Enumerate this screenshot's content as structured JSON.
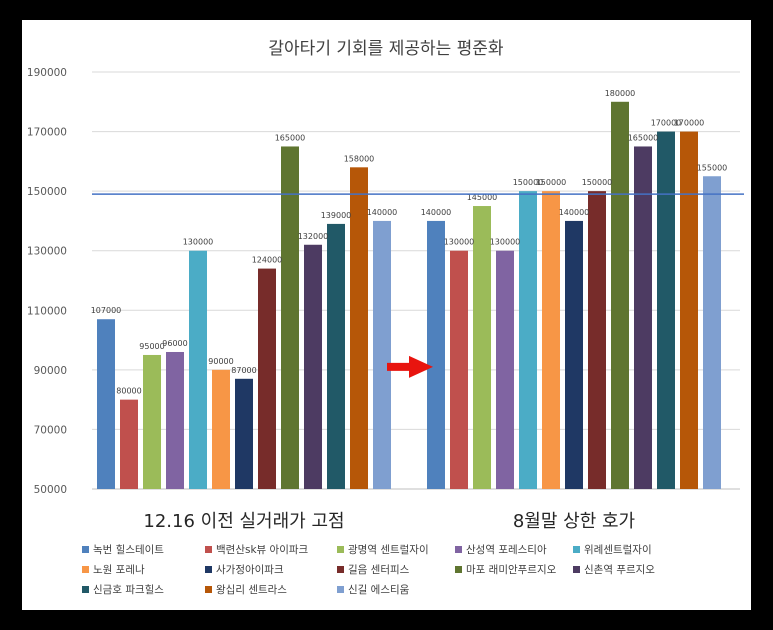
{
  "chart_data": {
    "type": "bar",
    "title": "갈아타기 기회를 제공하는 평준화",
    "ylim": [
      50000,
      190000
    ],
    "yticks": [
      50000,
      70000,
      90000,
      110000,
      130000,
      150000,
      170000,
      190000
    ],
    "grid": true,
    "legend_position": "bottom",
    "groups": [
      {
        "label": "12.16 이전 실거래가 고점",
        "series": [
          {
            "name": "녹번 힐스테이트",
            "value": 107000,
            "color": "#4F81BD"
          },
          {
            "name": "백련산sk뷰 아이파크",
            "value": 80000,
            "color": "#C0504D"
          },
          {
            "name": "광명역 센트럴자이",
            "value": 95000,
            "color": "#9BBB59"
          },
          {
            "name": "산성역 포레스티아",
            "value": 96000,
            "color": "#8064A2"
          },
          {
            "name": "위례센트럴자이",
            "value": 130000,
            "color": "#4BACC6"
          },
          {
            "name": "노원 포레나",
            "value": 90000,
            "color": "#F79646"
          },
          {
            "name": "사가정아이파크",
            "value": 87000,
            "color": "#1F3864"
          },
          {
            "name": "길음 센터피스",
            "value": 124000,
            "color": "#772C2A"
          },
          {
            "name": "마포 래미안푸르지오",
            "value": 165000,
            "color": "#5F7530"
          },
          {
            "name": "신촌역 푸르지오",
            "value": 132000,
            "color": "#4D3B62"
          },
          {
            "name": "신금호 파크힐스",
            "value": 139000,
            "color": "#215967"
          },
          {
            "name": "왕십리 센트라스",
            "value": 158000,
            "color": "#B65708"
          },
          {
            "name": "신길 에스티움",
            "value": 140000,
            "color": "#7F9FD0"
          }
        ]
      },
      {
        "label": "8월말 상한 호가",
        "series": [
          {
            "name": "녹번 힐스테이트",
            "value": 140000,
            "color": "#4F81BD"
          },
          {
            "name": "백련산sk뷰 아이파크",
            "value": 130000,
            "color": "#C0504D"
          },
          {
            "name": "광명역 센트럴자이",
            "value": 145000,
            "color": "#9BBB59"
          },
          {
            "name": "산성역 포레스티아",
            "value": 130000,
            "color": "#8064A2"
          },
          {
            "name": "위례센트럴자이",
            "value": 150000,
            "color": "#4BACC6"
          },
          {
            "name": "노원 포레나",
            "value": 150000,
            "color": "#F79646"
          },
          {
            "name": "사가정아이파크",
            "value": 140000,
            "color": "#1F3864"
          },
          {
            "name": "길음 센터피스",
            "value": 150000,
            "color": "#772C2A"
          },
          {
            "name": "마포 래미안푸르지오",
            "value": 180000,
            "color": "#5F7530"
          },
          {
            "name": "신촌역 푸르지오",
            "value": 165000,
            "color": "#4D3B62"
          },
          {
            "name": "신금호 파크힐스",
            "value": 170000,
            "color": "#215967"
          },
          {
            "name": "왕십리 센트라스",
            "value": 170000,
            "color": "#B65708"
          },
          {
            "name": "신길 에스티움",
            "value": 155000,
            "color": "#7F9FD0"
          }
        ]
      }
    ],
    "reference_line": {
      "value": 149000,
      "color": "#4472C4"
    },
    "arrow_color": "#E8140F"
  }
}
